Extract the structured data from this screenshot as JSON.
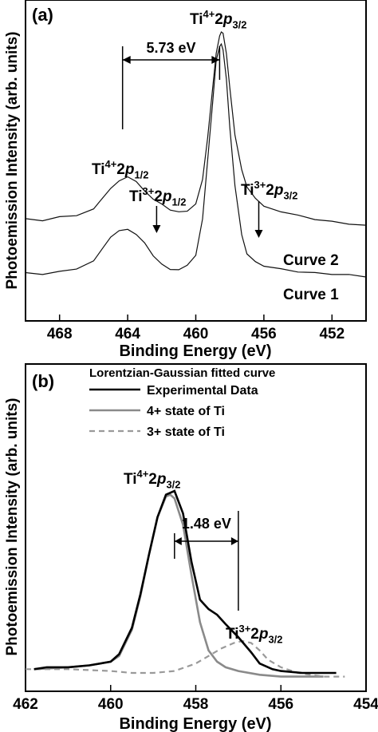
{
  "chart_data": [
    {
      "type": "line",
      "panel_label": "(a)",
      "xlabel": "Binding Energy (eV)",
      "ylabel": "Photoemission Intensity (arb. units)",
      "xlim": [
        470,
        450
      ],
      "x_reversed": true,
      "xticks": [
        468,
        464,
        460,
        456,
        452
      ],
      "series": [
        {
          "name": "Curve 2",
          "x": [
            470,
            469,
            468,
            467,
            466,
            465.5,
            465,
            464.5,
            464,
            463.5,
            463,
            462.5,
            462,
            461.5,
            461,
            460.5,
            460,
            459.6,
            459.3,
            459,
            458.8,
            458.6,
            458.5,
            458.4,
            458.2,
            458,
            457.7,
            457.3,
            457,
            456.5,
            456,
            455,
            454,
            453,
            452,
            451,
            450
          ],
          "y": [
            0.11,
            0.11,
            0.12,
            0.13,
            0.16,
            0.21,
            0.26,
            0.29,
            0.3,
            0.28,
            0.24,
            0.2,
            0.17,
            0.15,
            0.14,
            0.15,
            0.19,
            0.3,
            0.5,
            0.74,
            0.9,
            0.98,
            1.0,
            0.98,
            0.88,
            0.72,
            0.5,
            0.33,
            0.25,
            0.2,
            0.18,
            0.15,
            0.13,
            0.11,
            0.1,
            0.09,
            0.09
          ]
        },
        {
          "name": "Curve 1",
          "x": [
            470,
            469,
            468,
            467,
            466,
            465.5,
            465,
            464.5,
            464,
            463.5,
            463,
            462.5,
            462,
            461.5,
            461,
            460.5,
            460,
            459.6,
            459.3,
            459,
            458.8,
            458.6,
            458.5,
            458.4,
            458.2,
            458,
            457.7,
            457.3,
            457,
            456.5,
            456,
            455,
            454,
            453,
            452,
            451,
            450
          ],
          "y": [
            0.02,
            0.02,
            0.03,
            0.04,
            0.07,
            0.12,
            0.17,
            0.21,
            0.22,
            0.2,
            0.16,
            0.11,
            0.07,
            0.05,
            0.04,
            0.05,
            0.1,
            0.25,
            0.5,
            0.76,
            0.92,
            0.99,
            1.0,
            0.98,
            0.86,
            0.65,
            0.4,
            0.2,
            0.11,
            0.07,
            0.05,
            0.04,
            0.03,
            0.02,
            0.02,
            0.02,
            0.02
          ]
        }
      ],
      "annotations": {
        "peak_main": "Ti4+2p3/2",
        "peak_12": "Ti4+2p1/2",
        "peak_ti3_12": "Ti3+2p1/2",
        "peak_ti3_32": "Ti3+2p3/2",
        "splitting": "5.73 eV",
        "splitting_from_eV": 464.3,
        "splitting_to_eV": 458.6,
        "arrow_ti3_12_eV": 462.3,
        "arrow_ti3_32_eV": 456.3
      }
    },
    {
      "type": "line",
      "panel_label": "(b)",
      "xlabel": "Binding Energy (eV)",
      "ylabel": "Photoemission Intensity (arb. units)",
      "xlim": [
        462,
        454
      ],
      "x_reversed": true,
      "xticks": [
        462,
        460,
        458,
        456,
        454
      ],
      "legend_title": "Lorentzian-Gaussian fitted curve",
      "legend_position": "top-right",
      "series": [
        {
          "name": "Experimental Data",
          "style": "solid-black",
          "x": [
            461.8,
            461.5,
            461,
            460.5,
            460,
            459.8,
            459.5,
            459.3,
            459.1,
            458.9,
            458.7,
            458.5,
            458.3,
            458.1,
            457.9,
            457.7,
            457.5,
            457.3,
            457,
            456.7,
            456.5,
            456.2,
            456,
            455.5,
            455,
            454.7
          ],
          "y": [
            0.05,
            0.06,
            0.06,
            0.07,
            0.09,
            0.13,
            0.27,
            0.45,
            0.66,
            0.86,
            0.98,
            1.0,
            0.88,
            0.62,
            0.42,
            0.37,
            0.34,
            0.29,
            0.22,
            0.14,
            0.08,
            0.05,
            0.04,
            0.03,
            0.03,
            0.03
          ]
        },
        {
          "name": "4+ state of Ti",
          "style": "solid-gray",
          "x": [
            461.8,
            461,
            460.5,
            460,
            459.8,
            459.5,
            459.3,
            459.1,
            458.9,
            458.7,
            458.6,
            458.5,
            458.3,
            458.1,
            457.9,
            457.7,
            457.5,
            457.3,
            457,
            456.5,
            456,
            455
          ],
          "y": [
            0.05,
            0.06,
            0.07,
            0.09,
            0.12,
            0.26,
            0.44,
            0.66,
            0.86,
            0.97,
            0.98,
            0.96,
            0.82,
            0.55,
            0.3,
            0.15,
            0.09,
            0.06,
            0.04,
            0.02,
            0.01,
            0.01
          ]
        },
        {
          "name": "3+ state of Ti",
          "style": "dashed-gray",
          "x": [
            462,
            461,
            460,
            459.5,
            459,
            458.5,
            458,
            457.7,
            457.4,
            457.1,
            456.9,
            456.7,
            456.5,
            456.3,
            456,
            455.6,
            455,
            454.5
          ],
          "y": [
            0.05,
            0.05,
            0.04,
            0.03,
            0.03,
            0.04,
            0.08,
            0.12,
            0.16,
            0.19,
            0.2,
            0.19,
            0.15,
            0.1,
            0.06,
            0.03,
            0.01,
            0.01
          ]
        }
      ],
      "annotations": {
        "peak_main": "Ti4+2p3/2",
        "peak_ti3_32": "Ti3+2p3/2",
        "splitting": "1.48 eV",
        "splitting_from_eV": 458.5,
        "splitting_to_eV": 457.0
      }
    }
  ]
}
